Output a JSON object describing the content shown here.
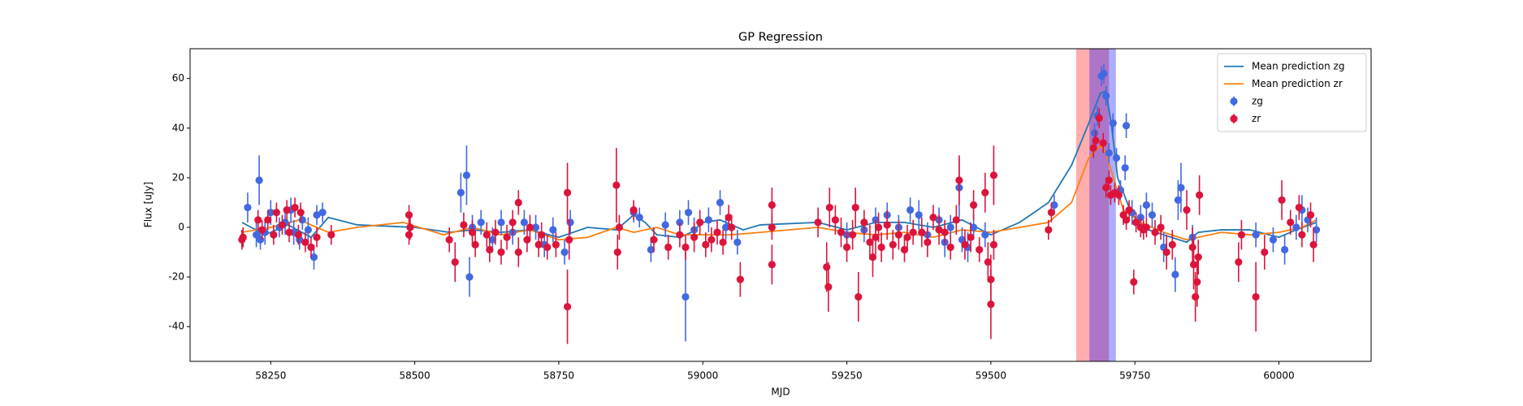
{
  "chart_data": {
    "type": "errorbar",
    "title": "GP Regression",
    "xlabel": "MJD",
    "ylabel": "Flux [uJy]",
    "xlim": [
      58110,
      60160
    ],
    "ylim": [
      -54,
      72
    ],
    "xticks": [
      58250,
      58500,
      58750,
      59000,
      59250,
      59500,
      59750,
      60000
    ],
    "yticks": [
      -40,
      -20,
      0,
      20,
      40,
      60
    ],
    "legend": "upper right",
    "spans": [
      {
        "x": [
          59648,
          59705
        ],
        "color": "#ff0000"
      },
      {
        "x": [
          59671,
          59717
        ],
        "color": "#0000ff"
      }
    ],
    "series": [
      {
        "name": "Mean prediction zg",
        "type": "line",
        "color": "#1f77b4",
        "x": [
          58200,
          58240,
          58280,
          58320,
          58350,
          58400,
          58500,
          58560,
          58600,
          58650,
          58700,
          58750,
          58800,
          58850,
          58880,
          58900,
          58920,
          58960,
          58980,
          59000,
          59030,
          59070,
          59100,
          59200,
          59250,
          59300,
          59350,
          59400,
          59450,
          59500,
          59550,
          59600,
          59640,
          59670,
          59690,
          59700,
          59710,
          59720,
          59740,
          59760,
          59800,
          59840,
          59860,
          59900,
          59950,
          60000,
          60030,
          60065
        ],
        "values": [
          2,
          -3,
          1,
          -4,
          4,
          1,
          0,
          -2,
          -1,
          -2,
          -1,
          -4,
          0,
          -1,
          5,
          2,
          -3,
          -4,
          -2,
          2,
          3,
          -1,
          1,
          2,
          -1,
          2,
          2,
          0,
          3,
          -3,
          2,
          10,
          25,
          42,
          54,
          55,
          40,
          20,
          8,
          0,
          -3,
          -6,
          -2,
          -1,
          -1,
          -4,
          -1,
          2
        ]
      },
      {
        "name": "Mean prediction zr",
        "type": "line",
        "color": "#ff7f0e",
        "x": [
          58200,
          58250,
          58300,
          58350,
          58400,
          58480,
          58550,
          58600,
          58650,
          58700,
          58750,
          58800,
          58850,
          58880,
          58920,
          58960,
          59000,
          59050,
          59100,
          59200,
          59250,
          59300,
          59350,
          59400,
          59450,
          59500,
          59550,
          59600,
          59640,
          59670,
          59690,
          59700,
          59715,
          59730,
          59760,
          59800,
          59840,
          59860,
          59900,
          59950,
          60000,
          60040,
          60065
        ],
        "values": [
          -2,
          0,
          3,
          -2,
          0,
          2,
          -3,
          0,
          -3,
          -1,
          -5,
          -4,
          0,
          -2,
          0,
          -3,
          -3,
          -3,
          -2,
          0,
          -2,
          -3,
          -2,
          -4,
          -1,
          -2,
          0,
          2,
          10,
          28,
          33,
          30,
          18,
          7,
          2,
          -2,
          -5,
          -4,
          -2,
          -3,
          -2,
          0,
          3
        ]
      },
      {
        "name": "zg",
        "type": "errorbar",
        "color": "#4169e1",
        "x": [
          58210,
          58225,
          58230,
          58232,
          58240,
          58250,
          58265,
          58275,
          58285,
          58290,
          58300,
          58305,
          58315,
          58325,
          58330,
          58340,
          58580,
          58590,
          58595,
          58600,
          58615,
          58635,
          58650,
          58670,
          58690,
          58710,
          58725,
          58740,
          58760,
          58770,
          58880,
          58890,
          58910,
          58935,
          58960,
          58970,
          58975,
          58985,
          59010,
          59030,
          59040,
          59060,
          59250,
          59280,
          59300,
          59320,
          59340,
          59360,
          59375,
          59390,
          59410,
          59420,
          59430,
          59445,
          59450,
          59460,
          59470,
          59490,
          59610,
          59680,
          59685,
          59692,
          59696,
          59700,
          59705,
          59712,
          59718,
          59725,
          59735,
          59733,
          59745,
          59760,
          59770,
          59780,
          59800,
          59820,
          59825,
          59830,
          59850,
          59960,
          59990,
          60010,
          60030,
          60040,
          60050,
          60065
        ],
        "values": [
          8,
          -3,
          19,
          -5,
          -2,
          6,
          0,
          2,
          7,
          -2,
          -5,
          3,
          -1,
          -12,
          5,
          6,
          14,
          21,
          -20,
          0,
          2,
          -5,
          2,
          -2,
          2,
          0,
          -7,
          -1,
          -10,
          2,
          6,
          4,
          -9,
          1,
          2,
          -28,
          6,
          -1,
          3,
          10,
          0,
          -6,
          -3,
          -1,
          3,
          5,
          0,
          7,
          5,
          -3,
          3,
          -6,
          0,
          16,
          -5,
          -8,
          0,
          -3,
          9,
          38,
          45,
          61,
          62,
          53,
          30,
          42,
          28,
          15,
          41,
          24,
          6,
          4,
          9,
          5,
          -8,
          -19,
          11,
          16,
          -4,
          -3,
          -5,
          -9,
          0,
          7,
          3,
          -1
        ],
        "errors": [
          6,
          5,
          10,
          4,
          5,
          5,
          4,
          5,
          5,
          5,
          4,
          4,
          5,
          5,
          4,
          4,
          8,
          12,
          8,
          5,
          5,
          5,
          5,
          5,
          5,
          5,
          5,
          5,
          5,
          5,
          4,
          4,
          5,
          5,
          5,
          18,
          5,
          5,
          5,
          5,
          5,
          5,
          5,
          5,
          5,
          5,
          5,
          5,
          6,
          5,
          5,
          6,
          5,
          12,
          5,
          6,
          5,
          5,
          4,
          4,
          4,
          4,
          4,
          4,
          4,
          4,
          4,
          4,
          5,
          5,
          5,
          5,
          5,
          5,
          6,
          7,
          8,
          10,
          5,
          5,
          5,
          6,
          5,
          6,
          5,
          5
        ]
      },
      {
        "name": "zr",
        "type": "errorbar",
        "color": "#dc143c",
        "x": [
          58200,
          58202,
          58228,
          58235,
          58245,
          58255,
          58260,
          58270,
          58278,
          58282,
          58292,
          58298,
          58302,
          58310,
          58320,
          58330,
          58355,
          58490,
          58490,
          58492,
          58560,
          58570,
          58585,
          58600,
          58605,
          58625,
          58630,
          58640,
          58650,
          58660,
          58670,
          58680,
          58680,
          58695,
          58700,
          58715,
          58720,
          58730,
          58745,
          58765,
          58765,
          58768,
          58850,
          58852,
          58855,
          58880,
          58915,
          58940,
          58960,
          58970,
          58985,
          58995,
          59005,
          59015,
          59025,
          59035,
          59045,
          59065,
          59050,
          59120,
          59120,
          59120,
          59200,
          59215,
          59218,
          59220,
          59230,
          59240,
          59250,
          59260,
          59265,
          59270,
          59280,
          59290,
          59295,
          59300,
          59305,
          59310,
          59320,
          59330,
          59340,
          59350,
          59355,
          59365,
          59380,
          59390,
          59400,
          59410,
          59420,
          59430,
          59440,
          59445,
          59455,
          59465,
          59470,
          59480,
          59490,
          59495,
          59500,
          59500,
          59505,
          59505,
          59600,
          59605,
          59678,
          59682,
          59688,
          59695,
          59700,
          59705,
          59708,
          59715,
          59722,
          59730,
          59735,
          59740,
          59748,
          59752,
          59760,
          59765,
          59770,
          59785,
          59795,
          59805,
          59815,
          59840,
          59850,
          59852,
          59855,
          59858,
          59860,
          59862,
          59930,
          59935,
          59960,
          59975,
          60005,
          60020,
          60035,
          60040,
          60055,
          60060
        ],
        "values": [
          -5,
          -4,
          3,
          -1,
          3,
          -3,
          6,
          1,
          7,
          -2,
          8,
          -3,
          6,
          -6,
          -8,
          -4,
          -3,
          5,
          -3,
          0,
          -5,
          -14,
          1,
          -2,
          -7,
          -3,
          -9,
          -2,
          -10,
          -4,
          2,
          -10,
          10,
          -5,
          0,
          -7,
          -3,
          -8,
          -7,
          14,
          -32,
          -5,
          17,
          -10,
          0,
          7,
          -5,
          -8,
          -3,
          -8,
          -4,
          2,
          -7,
          -5,
          -2,
          -6,
          4,
          -21,
          0,
          9,
          0,
          -15,
          2,
          -16,
          -24,
          8,
          3,
          -2,
          -8,
          -3,
          8,
          -28,
          2,
          -6,
          -12,
          -4,
          0,
          -8,
          1,
          -7,
          -3,
          -9,
          -4,
          -2,
          -2,
          -6,
          4,
          -1,
          -2,
          -8,
          3,
          19,
          -7,
          -4,
          9,
          -9,
          14,
          -14,
          -21,
          -31,
          21,
          -7,
          -1,
          6,
          32,
          35,
          44,
          34,
          16,
          19,
          13,
          14,
          13,
          5,
          3,
          7,
          -22,
          2,
          0,
          -1,
          0,
          -2,
          0,
          -10,
          -7,
          7,
          -8,
          -15,
          -28,
          -22,
          -12,
          13,
          -14,
          -3,
          -28,
          -10,
          11,
          2,
          8,
          -3,
          5,
          -7
        ],
        "errors": [
          4,
          4,
          4,
          4,
          4,
          4,
          4,
          4,
          4,
          4,
          4,
          4,
          4,
          4,
          4,
          4,
          4,
          4,
          4,
          5,
          5,
          8,
          5,
          5,
          5,
          5,
          5,
          5,
          5,
          5,
          5,
          6,
          5,
          5,
          5,
          5,
          5,
          5,
          5,
          12,
          15,
          8,
          15,
          7,
          5,
          4,
          5,
          5,
          5,
          5,
          6,
          5,
          5,
          5,
          5,
          5,
          5,
          7,
          5,
          7,
          5,
          8,
          6,
          10,
          10,
          8,
          6,
          6,
          6,
          6,
          8,
          10,
          5,
          7,
          8,
          7,
          6,
          6,
          6,
          6,
          6,
          5,
          5,
          5,
          6,
          6,
          5,
          6,
          5,
          5,
          6,
          10,
          6,
          6,
          6,
          5,
          8,
          8,
          10,
          14,
          12,
          6,
          4,
          4,
          4,
          4,
          4,
          4,
          4,
          4,
          4,
          4,
          4,
          4,
          4,
          4,
          5,
          4,
          4,
          4,
          4,
          5,
          5,
          7,
          6,
          8,
          8,
          10,
          10,
          10,
          7,
          8,
          8,
          6,
          14,
          7,
          8,
          5,
          5,
          5,
          5,
          7
        ]
      }
    ]
  }
}
